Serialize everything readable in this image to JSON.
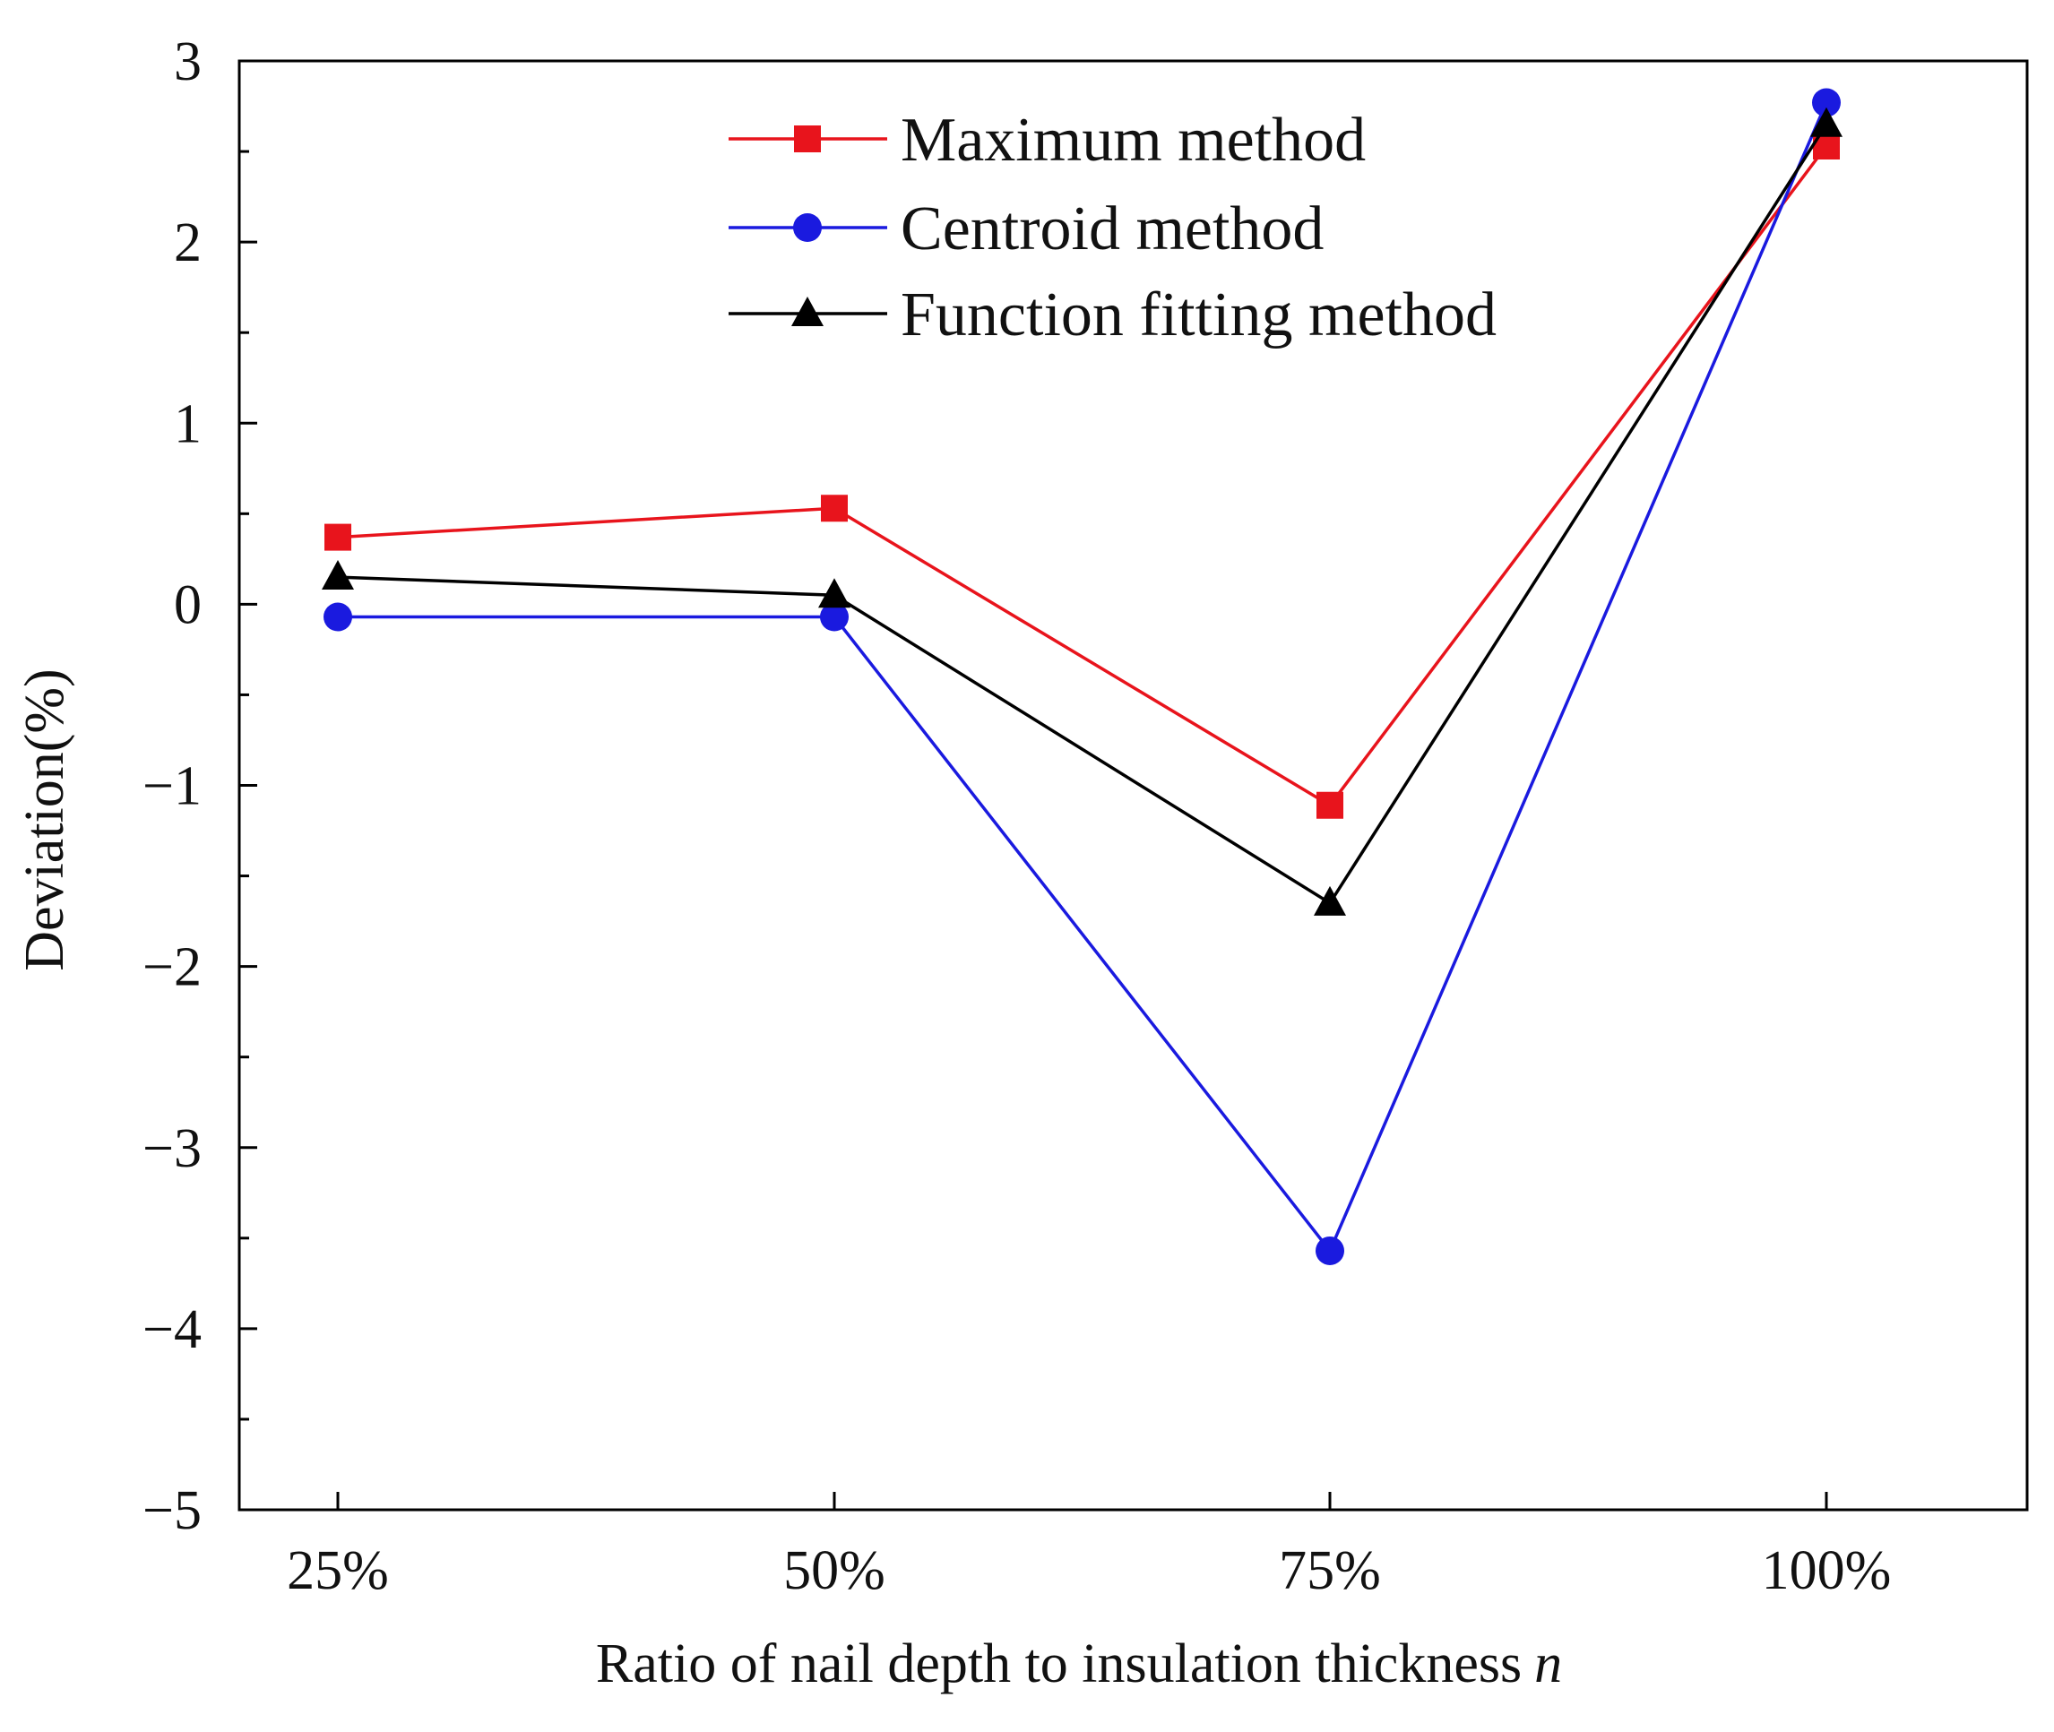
{
  "chart_data": {
    "type": "line",
    "title": "",
    "xlabel": "Ratio of nail depth to insulation thickness",
    "xlabel_var": "n",
    "ylabel": "Deviation(%)",
    "categories": [
      "25%",
      "50%",
      "75%",
      "100%"
    ],
    "ylim": [
      -5,
      3
    ],
    "yticks": [
      -5,
      -4,
      -3,
      -2,
      -1,
      0,
      1,
      2,
      3
    ],
    "ytick_labels": [
      "−5",
      "−4",
      "−3",
      "−2",
      "−1",
      "0",
      "1",
      "2",
      "3"
    ],
    "grid": false,
    "legend_position": "top-right",
    "series": [
      {
        "name": "Maximum method",
        "marker": "square",
        "color": "#e8141c",
        "values": [
          0.37,
          0.53,
          -1.11,
          2.53
        ]
      },
      {
        "name": "Centroid method",
        "marker": "circle",
        "color": "#1a1adf",
        "values": [
          -0.07,
          -0.07,
          -3.57,
          2.77
        ]
      },
      {
        "name": "Function fitting method",
        "marker": "triangle",
        "color": "#000000",
        "values": [
          0.15,
          0.05,
          -1.65,
          2.65
        ]
      }
    ]
  }
}
